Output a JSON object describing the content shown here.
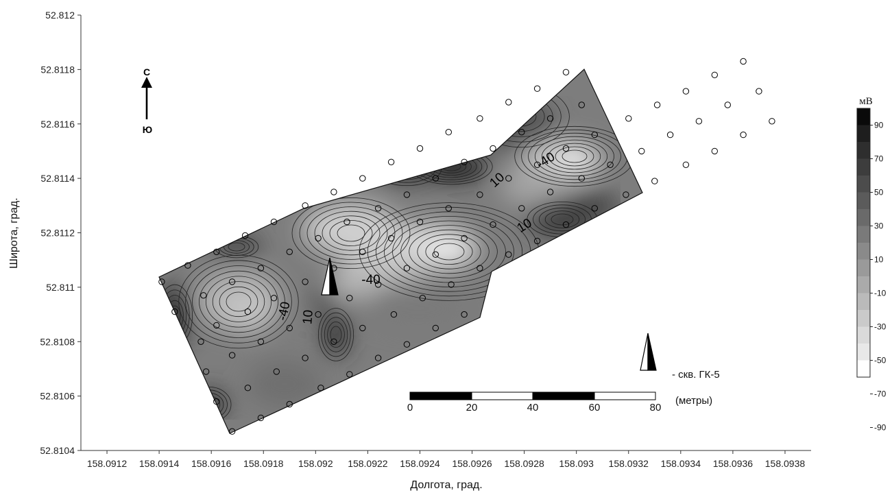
{
  "axes": {
    "xlabel": "Долгота, град.",
    "ylabel": "Широта, град.",
    "x_ticks": [
      "158.0912",
      "158.0914",
      "158.0916",
      "158.0918",
      "158.092",
      "158.0922",
      "158.0924",
      "158.0926",
      "158.0928",
      "158.093",
      "158.0932",
      "158.0934",
      "158.0936",
      "158.0938"
    ],
    "y_ticks": [
      "52.812",
      "52.8118",
      "52.8116",
      "52.8114",
      "52.8112",
      "52.811",
      "52.8108",
      "52.8106",
      "52.8104"
    ]
  },
  "compass": {
    "north": "С",
    "south": "Ю"
  },
  "legend": {
    "unit": "мВ",
    "labels": [
      "90",
      "70",
      "50",
      "30",
      "10",
      "-10",
      "-30",
      "-50",
      "-70",
      "-90"
    ],
    "shades": [
      "#0a0a0a",
      "#1e1e1e",
      "#2e2e2e",
      "#3d3d3d",
      "#4c4c4c",
      "#5b5b5b",
      "#6a6a6a",
      "#7a7a7a",
      "#8a8a8a",
      "#9a9a9a",
      "#aaaaaa",
      "#bababa",
      "#cacaca",
      "#dadada",
      "#e8e8e8",
      "#ffffff"
    ]
  },
  "well_marker": {
    "label": "- скв. ГК-5"
  },
  "scale_bar": {
    "ticks": [
      "0",
      "20",
      "40",
      "60",
      "80"
    ],
    "unit": "(метры)"
  },
  "contour_labels": [
    "-40",
    "-40",
    "-40",
    "10",
    "10",
    "10"
  ],
  "map_data": {
    "type": "contour",
    "quantity_unit": "мВ",
    "contour_levels": [
      -90,
      -80,
      -70,
      -60,
      -50,
      -40,
      -30,
      -20,
      -10,
      0,
      10,
      20,
      30,
      40,
      50,
      60,
      70,
      80,
      90,
      100
    ],
    "x_range": [
      158.0911,
      158.0939
    ],
    "y_range": [
      52.8104,
      52.812
    ],
    "well": {
      "name": "ГК-5",
      "lon": 158.09203,
      "lat": 52.81105
    },
    "survey_points": [
      [
        158.09141,
        52.81102
      ],
      [
        158.09146,
        52.81091
      ],
      [
        158.09151,
        52.81108
      ],
      [
        158.09156,
        52.8108
      ],
      [
        158.09157,
        52.81097
      ],
      [
        158.09158,
        52.81069
      ],
      [
        158.09162,
        52.81113
      ],
      [
        158.09162,
        52.81086
      ],
      [
        158.09162,
        52.81058
      ],
      [
        158.09168,
        52.81102
      ],
      [
        158.09168,
        52.81075
      ],
      [
        158.09168,
        52.81047
      ],
      [
        158.09173,
        52.81119
      ],
      [
        158.09174,
        52.81091
      ],
      [
        158.09174,
        52.81063
      ],
      [
        158.09179,
        52.81107
      ],
      [
        158.09179,
        52.8108
      ],
      [
        158.09179,
        52.81052
      ],
      [
        158.09184,
        52.81124
      ],
      [
        158.09184,
        52.81096
      ],
      [
        158.09185,
        52.81069
      ],
      [
        158.0919,
        52.81113
      ],
      [
        158.0919,
        52.81085
      ],
      [
        158.0919,
        52.81057
      ],
      [
        158.09196,
        52.8113
      ],
      [
        158.09196,
        52.81102
      ],
      [
        158.09196,
        52.81074
      ],
      [
        158.09201,
        52.81118
      ],
      [
        158.09201,
        52.8109
      ],
      [
        158.09202,
        52.81063
      ],
      [
        158.09207,
        52.81135
      ],
      [
        158.09207,
        52.81107
      ],
      [
        158.09207,
        52.8108
      ],
      [
        158.09212,
        52.81124
      ],
      [
        158.09213,
        52.81096
      ],
      [
        158.09213,
        52.81068
      ],
      [
        158.09218,
        52.8114
      ],
      [
        158.09218,
        52.81113
      ],
      [
        158.09218,
        52.81085
      ],
      [
        158.09224,
        52.81129
      ],
      [
        158.09224,
        52.81101
      ],
      [
        158.09224,
        52.81074
      ],
      [
        158.09229,
        52.81146
      ],
      [
        158.09229,
        52.81118
      ],
      [
        158.0923,
        52.8109
      ],
      [
        158.09235,
        52.81134
      ],
      [
        158.09235,
        52.81107
      ],
      [
        158.09235,
        52.81079
      ],
      [
        158.0924,
        52.81151
      ],
      [
        158.0924,
        52.81124
      ],
      [
        158.09241,
        52.81096
      ],
      [
        158.09246,
        52.8114
      ],
      [
        158.09246,
        52.81112
      ],
      [
        158.09246,
        52.81085
      ],
      [
        158.09251,
        52.81157
      ],
      [
        158.09251,
        52.81129
      ],
      [
        158.09252,
        52.81101
      ],
      [
        158.09257,
        52.81146
      ],
      [
        158.09257,
        52.81118
      ],
      [
        158.09257,
        52.8109
      ],
      [
        158.09263,
        52.81162
      ],
      [
        158.09263,
        52.81134
      ],
      [
        158.09263,
        52.81107
      ],
      [
        158.09268,
        52.81151
      ],
      [
        158.09268,
        52.81123
      ],
      [
        158.09274,
        52.81168
      ],
      [
        158.09274,
        52.8114
      ],
      [
        158.09274,
        52.81112
      ],
      [
        158.09279,
        52.81157
      ],
      [
        158.09279,
        52.81129
      ],
      [
        158.09285,
        52.81173
      ],
      [
        158.09285,
        52.81145
      ],
      [
        158.09285,
        52.81117
      ],
      [
        158.0929,
        52.81162
      ],
      [
        158.0929,
        52.81135
      ],
      [
        158.09296,
        52.81179
      ],
      [
        158.09296,
        52.81151
      ],
      [
        158.09296,
        52.81123
      ],
      [
        158.09302,
        52.81167
      ],
      [
        158.09302,
        52.8114
      ],
      [
        158.09307,
        52.81156
      ],
      [
        158.09307,
        52.81129
      ],
      [
        158.09313,
        52.81145
      ],
      [
        158.09319,
        52.81134
      ],
      [
        158.0932,
        52.81162
      ],
      [
        158.09325,
        52.8115
      ],
      [
        158.0933,
        52.81139
      ],
      [
        158.09331,
        52.81167
      ],
      [
        158.09336,
        52.81156
      ],
      [
        158.09342,
        52.81172
      ],
      [
        158.09342,
        52.81145
      ],
      [
        158.09347,
        52.81161
      ],
      [
        158.09353,
        52.81178
      ],
      [
        158.09353,
        52.8115
      ],
      [
        158.09358,
        52.81167
      ],
      [
        158.09364,
        52.81183
      ],
      [
        158.09364,
        52.81156
      ],
      [
        158.0937,
        52.81172
      ],
      [
        158.09375,
        52.81161
      ]
    ]
  }
}
